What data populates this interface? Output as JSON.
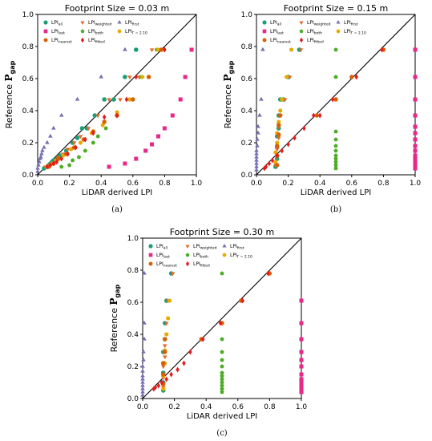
{
  "chart_data": [
    {
      "type": "scatter",
      "title": "Footprint Size = 0.03 m",
      "xlabel": "LiDAR derived LPI",
      "ylabel": "Reference",
      "ylabel_symbol": "P",
      "ylabel_sub": "gap",
      "panel_label": "(a)",
      "xlim": [
        0,
        1
      ],
      "ylim": [
        0,
        1
      ],
      "xticks": [
        "0.0",
        "0.2",
        "0.4",
        "0.6",
        "0.8",
        "1.0"
      ],
      "yticks": [
        "0.0",
        "0.2",
        "0.4",
        "0.6",
        "0.8",
        "1.0"
      ],
      "reference_line": [
        [
          0,
          0
        ],
        [
          1,
          1
        ]
      ],
      "legend_position": "top-left",
      "series": [
        {
          "name": "LPI",
          "sub": "all",
          "marker": "circle",
          "color": "#1b9e77",
          "x": [
            0.04,
            0.06,
            0.07,
            0.08,
            0.09,
            0.1,
            0.12,
            0.14,
            0.18,
            0.22,
            0.25,
            0.28,
            0.31,
            0.36,
            0.42,
            0.48,
            0.55,
            0.62
          ],
          "y": [
            0.04,
            0.05,
            0.06,
            0.07,
            0.08,
            0.09,
            0.1,
            0.12,
            0.15,
            0.2,
            0.23,
            0.29,
            0.29,
            0.37,
            0.47,
            0.47,
            0.61,
            0.78
          ]
        },
        {
          "name": "LPI",
          "sub": "weighted",
          "marker": "triangle-down",
          "color": "#e7692c",
          "x": [
            0.05,
            0.07,
            0.09,
            0.11,
            0.13,
            0.16,
            0.19,
            0.23,
            0.27,
            0.32,
            0.38,
            0.45,
            0.52,
            0.58,
            0.64,
            0.72
          ],
          "y": [
            0.05,
            0.06,
            0.07,
            0.09,
            0.11,
            0.13,
            0.16,
            0.2,
            0.24,
            0.29,
            0.37,
            0.47,
            0.47,
            0.61,
            0.61,
            0.78
          ]
        },
        {
          "name": "LPI",
          "sub": "first",
          "marker": "triangle-up",
          "color": "#7570b3",
          "x": [
            0.0,
            0.0,
            0.005,
            0.01,
            0.015,
            0.02,
            0.025,
            0.03,
            0.04,
            0.06,
            0.08,
            0.1,
            0.15,
            0.25,
            0.4,
            0.55
          ],
          "y": [
            0.02,
            0.04,
            0.06,
            0.08,
            0.1,
            0.11,
            0.13,
            0.15,
            0.17,
            0.2,
            0.24,
            0.29,
            0.37,
            0.47,
            0.61,
            0.78
          ]
        },
        {
          "name": "LPI",
          "sub": "last",
          "marker": "square",
          "color": "#e7298a",
          "x": [
            0.45,
            0.55,
            0.62,
            0.68,
            0.72,
            0.76,
            0.8,
            0.85,
            0.9,
            0.93,
            0.97
          ],
          "y": [
            0.05,
            0.07,
            0.1,
            0.15,
            0.19,
            0.24,
            0.29,
            0.37,
            0.47,
            0.61,
            0.78
          ]
        },
        {
          "name": "LPI",
          "sub": "both",
          "marker": "pentagon",
          "color": "#4dac26",
          "x": [
            0.15,
            0.2,
            0.22,
            0.26,
            0.3,
            0.35,
            0.38,
            0.43,
            0.5,
            0.58,
            0.65,
            0.75
          ],
          "y": [
            0.05,
            0.06,
            0.09,
            0.11,
            0.15,
            0.2,
            0.24,
            0.29,
            0.37,
            0.47,
            0.61,
            0.78
          ]
        },
        {
          "name": "LPI",
          "sub": "Γ = 2.10",
          "marker": "hexagon",
          "color": "#e6ab02",
          "x": [
            0.06,
            0.09,
            0.12,
            0.16,
            0.21,
            0.27,
            0.34,
            0.41,
            0.5,
            0.58,
            0.66,
            0.76
          ],
          "y": [
            0.05,
            0.07,
            0.09,
            0.12,
            0.16,
            0.2,
            0.26,
            0.31,
            0.39,
            0.47,
            0.61,
            0.78
          ]
        },
        {
          "name": "LPI",
          "sub": "nearest",
          "marker": "octagon",
          "color": "#d95f02",
          "x": [
            0.07,
            0.1,
            0.13,
            0.18,
            0.23,
            0.29,
            0.35,
            0.42,
            0.5,
            0.6,
            0.7,
            0.78
          ],
          "y": [
            0.05,
            0.07,
            0.1,
            0.13,
            0.17,
            0.22,
            0.27,
            0.33,
            0.37,
            0.47,
            0.61,
            0.78
          ]
        },
        {
          "name": "LPI",
          "sub": "fitted",
          "marker": "diamond",
          "color": "#e41a1c",
          "x": [
            0.06,
            0.08,
            0.1,
            0.12,
            0.15,
            0.19,
            0.24,
            0.3,
            0.35,
            0.42,
            0.5,
            0.56,
            0.62,
            0.8
          ],
          "y": [
            0.05,
            0.06,
            0.07,
            0.08,
            0.1,
            0.13,
            0.17,
            0.22,
            0.26,
            0.36,
            0.37,
            0.47,
            0.61,
            0.78
          ]
        }
      ]
    },
    {
      "type": "scatter",
      "title": "Footprint Size = 0.15 m",
      "xlabel": "LiDAR derived LPI",
      "ylabel": "Reference",
      "ylabel_symbol": "P",
      "ylabel_sub": "gap",
      "panel_label": "(b)",
      "xlim": [
        0,
        1
      ],
      "ylim": [
        0,
        1
      ],
      "xticks": [
        "0.0",
        "0.2",
        "0.4",
        "0.6",
        "0.8",
        "1.0"
      ],
      "yticks": [
        "0.0",
        "0.2",
        "0.4",
        "0.6",
        "0.8",
        "1.0"
      ],
      "reference_line": [
        [
          0,
          0
        ],
        [
          1,
          1
        ]
      ],
      "legend_position": "top-left",
      "series": [
        {
          "name": "LPI",
          "sub": "all",
          "marker": "circle",
          "color": "#1b9e77",
          "x": [
            0.12,
            0.13,
            0.13,
            0.13,
            0.14,
            0.14,
            0.15,
            0.17,
            0.2,
            0.27
          ],
          "y": [
            0.05,
            0.1,
            0.17,
            0.24,
            0.29,
            0.37,
            0.47,
            0.47,
            0.61,
            0.78
          ]
        },
        {
          "name": "LPI",
          "sub": "weighted",
          "marker": "triangle-down",
          "color": "#e7692c",
          "x": [
            0.12,
            0.13,
            0.13,
            0.14,
            0.14,
            0.15,
            0.16,
            0.18,
            0.21,
            0.28
          ],
          "y": [
            0.06,
            0.11,
            0.16,
            0.23,
            0.3,
            0.37,
            0.47,
            0.47,
            0.61,
            0.78
          ]
        },
        {
          "name": "LPI",
          "sub": "first",
          "marker": "triangle-up",
          "color": "#7570b3",
          "x": [
            0.0,
            0.0,
            0.0,
            0.0,
            0.0,
            0.0,
            0.0,
            0.005,
            0.005,
            0.01,
            0.01,
            0.02,
            0.03,
            0.04
          ],
          "y": [
            0.03,
            0.05,
            0.07,
            0.09,
            0.11,
            0.13,
            0.15,
            0.18,
            0.22,
            0.26,
            0.3,
            0.37,
            0.47,
            0.78
          ]
        },
        {
          "name": "LPI",
          "sub": "last",
          "marker": "square",
          "color": "#e7298a",
          "x": [
            1,
            1,
            1,
            1,
            1,
            1,
            1,
            1,
            1,
            1,
            1,
            1,
            1,
            1
          ],
          "y": [
            0.04,
            0.06,
            0.08,
            0.1,
            0.12,
            0.15,
            0.18,
            0.22,
            0.26,
            0.3,
            0.37,
            0.47,
            0.61,
            0.78
          ]
        },
        {
          "name": "LPI",
          "sub": "both",
          "marker": "pentagon",
          "color": "#4dac26",
          "x": [
            0.5,
            0.5,
            0.5,
            0.5,
            0.5,
            0.5,
            0.5,
            0.5,
            0.5,
            0.5,
            0.5,
            0.5
          ],
          "y": [
            0.04,
            0.06,
            0.08,
            0.1,
            0.12,
            0.15,
            0.18,
            0.22,
            0.27,
            0.47,
            0.61,
            0.78
          ]
        },
        {
          "name": "LPI",
          "sub": "Γ = 2.10",
          "marker": "hexagon",
          "color": "#e6ab02",
          "x": [
            0.12,
            0.12,
            0.13,
            0.13,
            0.14,
            0.15,
            0.16,
            0.19,
            0.22
          ],
          "y": [
            0.08,
            0.14,
            0.2,
            0.26,
            0.33,
            0.4,
            0.47,
            0.61,
            0.78
          ]
        },
        {
          "name": "LPI",
          "sub": "nearest",
          "marker": "octagon",
          "color": "#d95f02",
          "x": [
            0.13,
            0.13,
            0.13,
            0.14,
            0.14,
            0.15,
            0.38,
            0.5,
            0.6,
            0.8
          ],
          "y": [
            0.06,
            0.12,
            0.18,
            0.25,
            0.31,
            0.37,
            0.37,
            0.47,
            0.61,
            0.78
          ]
        },
        {
          "name": "LPI",
          "sub": "fitted",
          "marker": "diamond",
          "color": "#e41a1c",
          "x": [
            0.05,
            0.06,
            0.08,
            0.1,
            0.13,
            0.16,
            0.2,
            0.24,
            0.3,
            0.36,
            0.4,
            0.48,
            0.63,
            0.79
          ],
          "y": [
            0.04,
            0.05,
            0.07,
            0.09,
            0.12,
            0.15,
            0.19,
            0.23,
            0.29,
            0.37,
            0.37,
            0.47,
            0.61,
            0.78
          ]
        }
      ]
    },
    {
      "type": "scatter",
      "title": "Footprint Size = 0.30 m",
      "xlabel": "LiDAR derived LPI",
      "ylabel": "Reference",
      "ylabel_symbol": "P",
      "ylabel_sub": "gap",
      "panel_label": "(c)",
      "xlim": [
        0,
        1
      ],
      "ylim": [
        0,
        1
      ],
      "xticks": [
        "0.0",
        "0.2",
        "0.4",
        "0.6",
        "0.8",
        "1.0"
      ],
      "yticks": [
        "0.0",
        "0.2",
        "0.4",
        "0.6",
        "0.8",
        "1.0"
      ],
      "reference_line": [
        [
          0,
          0
        ],
        [
          1,
          1
        ]
      ],
      "legend_position": "top-left",
      "series": [
        {
          "name": "LPI",
          "sub": "all",
          "marker": "circle",
          "color": "#1b9e77",
          "x": [
            0.13,
            0.13,
            0.13,
            0.13,
            0.13,
            0.14,
            0.14,
            0.15,
            0.18
          ],
          "y": [
            0.05,
            0.1,
            0.16,
            0.22,
            0.29,
            0.37,
            0.47,
            0.61,
            0.78
          ]
        },
        {
          "name": "LPI",
          "sub": "weighted",
          "marker": "triangle-down",
          "color": "#e7692c",
          "x": [
            0.13,
            0.13,
            0.13,
            0.14,
            0.14,
            0.15,
            0.15,
            0.16,
            0.19
          ],
          "y": [
            0.07,
            0.13,
            0.2,
            0.26,
            0.33,
            0.4,
            0.47,
            0.61,
            0.78
          ]
        },
        {
          "name": "LPI",
          "sub": "first",
          "marker": "triangle-up",
          "color": "#7570b3",
          "x": [
            0.0,
            0.0,
            0.0,
            0.0,
            0.0,
            0.0,
            0.0,
            0.0,
            0.0,
            0.005,
            0.005,
            0.01,
            0.01,
            0.01
          ],
          "y": [
            0.02,
            0.04,
            0.06,
            0.08,
            0.1,
            0.12,
            0.14,
            0.17,
            0.2,
            0.24,
            0.29,
            0.37,
            0.47,
            0.78
          ]
        },
        {
          "name": "LPI",
          "sub": "last",
          "marker": "square",
          "color": "#e7298a",
          "x": [
            1,
            1,
            1,
            1,
            1,
            1,
            1,
            1,
            1,
            1,
            1,
            1
          ],
          "y": [
            0.04,
            0.06,
            0.08,
            0.1,
            0.12,
            0.15,
            0.2,
            0.24,
            0.29,
            0.37,
            0.47,
            0.61
          ]
        },
        {
          "name": "LPI",
          "sub": "both",
          "marker": "pentagon",
          "color": "#4dac26",
          "x": [
            0.5,
            0.5,
            0.5,
            0.5,
            0.5,
            0.5,
            0.5,
            0.5,
            0.5,
            0.5,
            0.5,
            0.5,
            0.5
          ],
          "y": [
            0.04,
            0.06,
            0.08,
            0.1,
            0.12,
            0.14,
            0.16,
            0.2,
            0.24,
            0.29,
            0.37,
            0.47,
            0.78
          ]
        },
        {
          "name": "LPI",
          "sub": "Γ = 2.10",
          "marker": "hexagon",
          "color": "#e6ab02",
          "x": [
            0.13,
            0.13,
            0.14,
            0.14,
            0.15,
            0.16,
            0.17
          ],
          "y": [
            0.06,
            0.14,
            0.22,
            0.3,
            0.4,
            0.5,
            0.61
          ]
        },
        {
          "name": "LPI",
          "sub": "nearest",
          "marker": "octagon",
          "color": "#d95f02",
          "x": [
            0.13,
            0.13,
            0.13,
            0.14,
            0.14,
            0.37,
            0.5,
            0.62,
            0.8
          ],
          "y": [
            0.09,
            0.15,
            0.22,
            0.29,
            0.37,
            0.37,
            0.47,
            0.61,
            0.78
          ]
        },
        {
          "name": "LPI",
          "sub": "fitted",
          "marker": "diamond",
          "color": "#e41a1c",
          "x": [
            0.07,
            0.08,
            0.1,
            0.12,
            0.15,
            0.18,
            0.22,
            0.26,
            0.3,
            0.38,
            0.49,
            0.63,
            0.79
          ],
          "y": [
            0.06,
            0.07,
            0.08,
            0.1,
            0.12,
            0.15,
            0.18,
            0.22,
            0.29,
            0.37,
            0.47,
            0.61,
            0.78
          ]
        }
      ]
    }
  ]
}
